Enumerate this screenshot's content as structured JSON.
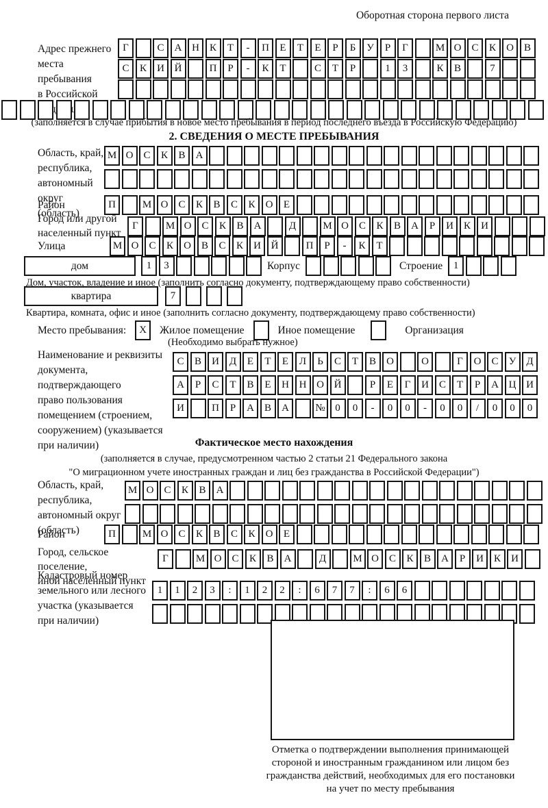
{
  "page": {
    "header_right": "Оборотная сторона первого листа"
  },
  "prev_address": {
    "label": [
      "Адрес прежнего",
      "места пребывания",
      "в Российской",
      "Федерации"
    ],
    "rows": [
      {
        "cells": "Г САНКТ-ПЕТЕРБУРГ МОСКОВ",
        "count": 24
      },
      {
        "cells": "СКИЙ ПР-КТ СТР 13 КВ 7",
        "count": 24
      },
      {
        "cells": "",
        "count": 24
      }
    ],
    "row_full": {
      "cells": "",
      "count": 30,
      "gap": 3.5
    },
    "note": "(заполняется в случае прибытия в новое место пребывания в период последнего въезда в Российскую Федерацию)"
  },
  "section2": {
    "title": "2. СВЕДЕНИЯ О МЕСТЕ ПРЕБЫВАНИЯ",
    "oblast": {
      "label": [
        "Область, край,",
        "республика,",
        "автономный",
        "округ (область)"
      ],
      "rows": [
        {
          "cells": "МОСКВА",
          "count": 25
        },
        {
          "cells": "",
          "count": 25
        }
      ]
    },
    "raion": {
      "label": [
        "Район"
      ],
      "rows": [
        {
          "cells": "П МОСКВСКОЕ",
          "count": 25
        }
      ]
    },
    "gorod": {
      "label": [
        "Город или другой",
        "населенный пункт"
      ],
      "rows": [
        {
          "cells": "Г МОСКВА Д МОСКВАРИКИ",
          "count": 24
        }
      ]
    },
    "ulitsa": {
      "label": [
        "Улица"
      ],
      "rows": [
        {
          "cells": "МОСКОВСКИЙ ПР-КТ",
          "count": 25
        }
      ]
    },
    "dom": {
      "box_label": "дом",
      "number": {
        "cells": "13",
        "count": 7
      },
      "korpus_label": "Корпус",
      "korpus": {
        "cells": "",
        "count": 5
      },
      "stroenie_label": "Строение",
      "stroenie": {
        "cells": "1",
        "count": 4
      },
      "note": "Дом, участок, владение и иное (заполнить согласно документу, подтверждающему право собственности)"
    },
    "kvartira": {
      "box_label": "квартира",
      "number": {
        "cells": "7",
        "count": 4,
        "gap": 7
      },
      "note": "Квартира, комната, офис и иное (заполнить согласно документу, подтверждающему право собственности)"
    },
    "mesto": {
      "label": "Место пребывания:",
      "opts": [
        {
          "box": {
            "cells": "X",
            "count": 1
          },
          "label": "Жилое помещение"
        },
        {
          "box": {
            "cells": "",
            "count": 1
          },
          "label": "Иное помещение"
        },
        {
          "box": {
            "cells": "",
            "count": 1
          },
          "label": "Организация"
        }
      ],
      "note": "(Необходимо выбрать нужное)"
    },
    "document": {
      "label": [
        "Наименование и реквизиты",
        "документа, подтверждающего",
        "право пользования",
        "помещением (строением,",
        "сооружением) (указывается",
        "при наличии)"
      ],
      "rows": [
        {
          "cells": "СВИДЕТЕЛЬСТВО О ГОСУД",
          "count": 21
        },
        {
          "cells": "АРСТВЕННОЙ РЕГИСТРАЦИ",
          "count": 21
        },
        {
          "cells": "И ПРАВА №00-00-00/000",
          "count": 21
        }
      ]
    }
  },
  "fact": {
    "title": "Фактическое место нахождения",
    "note1": "(заполняется в случае, предусмотренном частью 2 статьи 21 Федерального закона",
    "note2": "\"О миграционном учете иностранных граждан и лиц без гражданства в Российской Федерации\")",
    "oblast": {
      "label": [
        "Область, край,",
        "республика,",
        "автономный округ",
        "(область)"
      ],
      "rows": [
        {
          "cells": "МОСКВА",
          "count": 24
        },
        {
          "cells": "",
          "count": 24
        }
      ]
    },
    "raion": {
      "label": [
        "Район"
      ],
      "rows": [
        {
          "cells": "П МОСКВСКОЕ",
          "count": 25
        }
      ]
    },
    "gorod": {
      "label": [
        "Город, сельское поселение,",
        "иной населенный пункт"
      ],
      "rows": [
        {
          "cells": "Г МОСКВА Д МОСКВАРИКИ",
          "count": 22
        }
      ]
    },
    "kadastr": {
      "label": [
        "Кадастровый номер",
        "земельного или лесного",
        "участка (указывается",
        "при наличии)"
      ],
      "rows": [
        {
          "cells": "1123:122:677:66",
          "count": 22
        },
        {
          "cells": "",
          "count": 22
        }
      ]
    },
    "stamp_caption": [
      "Отметка о подтверждении выполнения принимающей",
      "стороной и иностранным гражданином или лицом без",
      "гражданства действий, необходимых для его постановки",
      "на учет по месту пребывания"
    ]
  }
}
